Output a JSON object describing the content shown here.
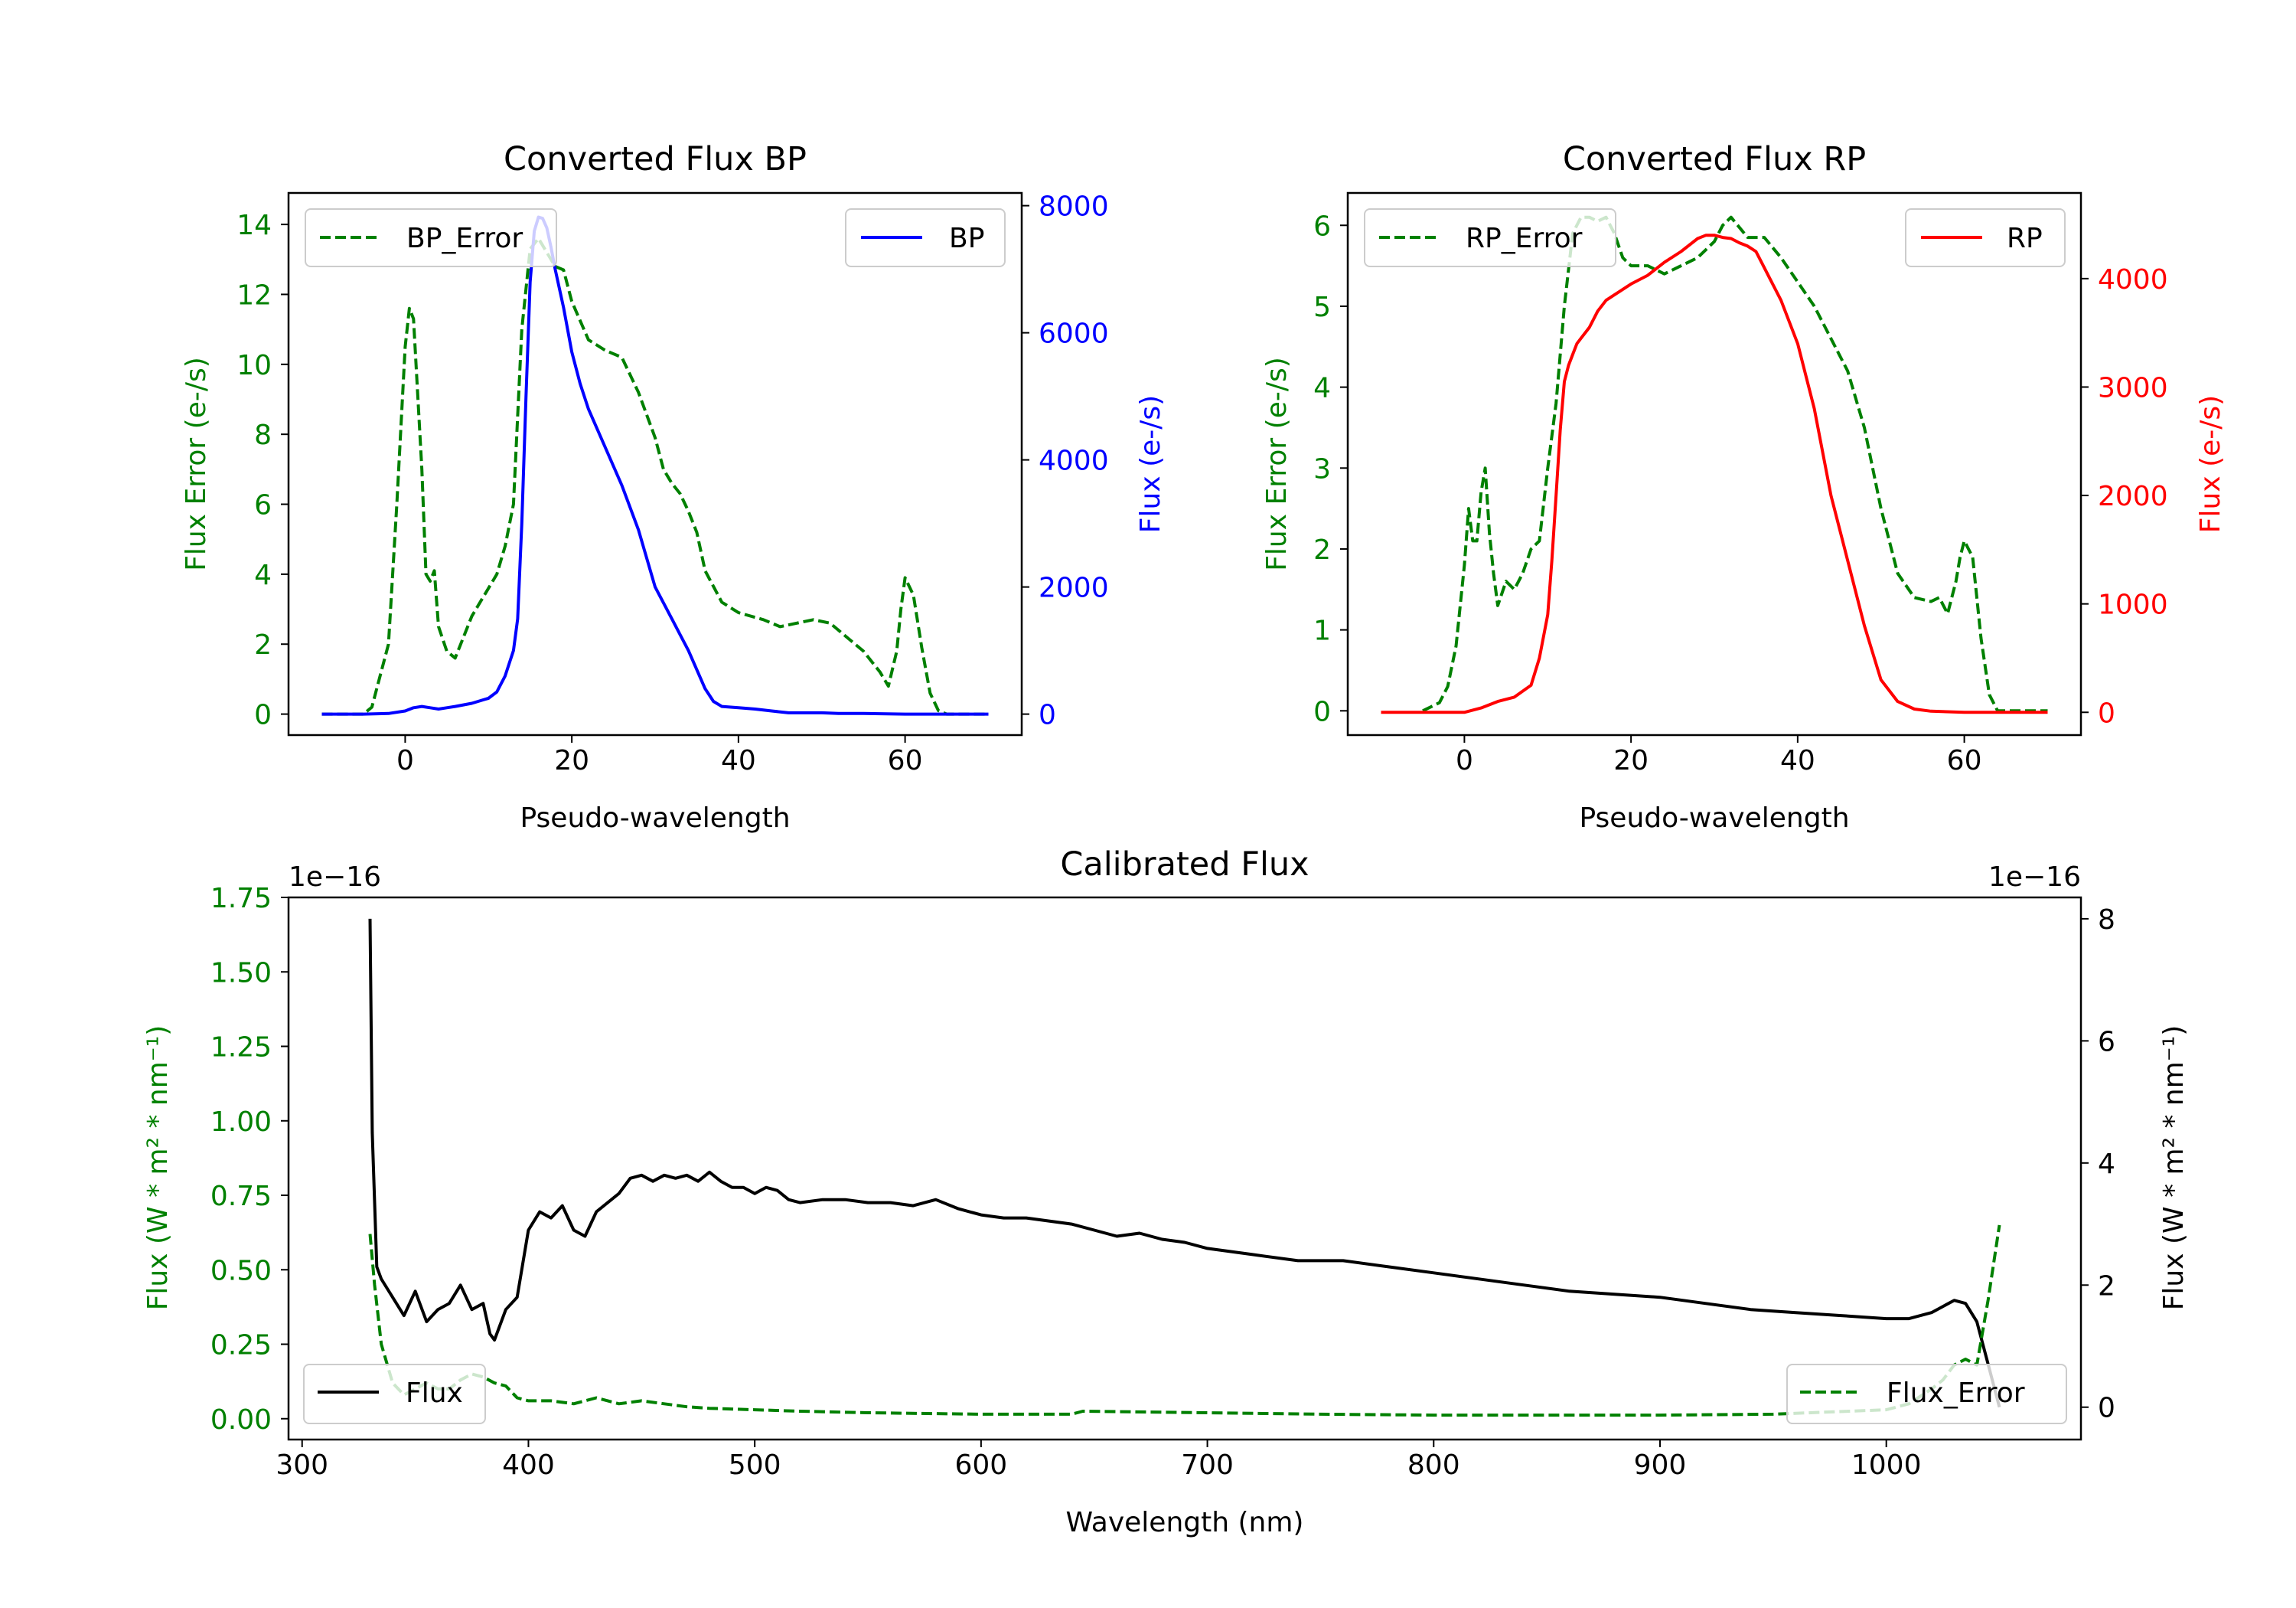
{
  "chart_data": [
    {
      "id": "bp",
      "type": "line",
      "title": "Converted Flux BP",
      "xlabel": "Pseudo-wavelength",
      "ylabel_left": "Flux Error (e-/s)",
      "ylabel_right": "Flux (e-/s)",
      "xlim": [
        -14,
        74
      ],
      "ylim_left": [
        -0.6,
        14.9
      ],
      "ylim_right": [
        -330,
        8200
      ],
      "xticks": [
        0,
        20,
        40,
        60
      ],
      "yticks_left": [
        0,
        2,
        4,
        6,
        8,
        10,
        12,
        14
      ],
      "yticks_right": [
        0,
        2000,
        4000,
        6000,
        8000
      ],
      "series": [
        {
          "name": "BP_Error",
          "axis": "left",
          "color": "#008000",
          "dashed": true,
          "legend": "top-left",
          "x": [
            -10,
            -5,
            -4,
            -2,
            -1,
            0,
            0.5,
            1,
            2,
            2.5,
            3,
            3.5,
            4,
            5,
            6,
            7,
            8,
            9,
            10,
            11,
            12,
            13,
            14,
            15,
            16,
            17,
            18,
            19,
            20,
            22,
            24,
            26,
            28,
            30,
            31,
            32,
            33,
            34,
            35,
            36,
            38,
            40,
            43,
            45,
            47,
            49,
            51,
            53,
            55,
            57,
            58,
            59,
            59.5,
            60,
            61,
            62,
            63,
            64,
            65,
            70
          ],
          "y": [
            0,
            0,
            0.2,
            2,
            6,
            10.5,
            11.6,
            11.3,
            7,
            4,
            3.8,
            4.1,
            2.5,
            1.8,
            1.6,
            2.2,
            2.8,
            3.2,
            3.6,
            4,
            4.8,
            6,
            11,
            13.3,
            13.6,
            13.2,
            12.8,
            12.7,
            11.8,
            10.7,
            10.4,
            10.2,
            9.2,
            7.9,
            7,
            6.6,
            6.3,
            5.8,
            5.2,
            4.1,
            3.2,
            2.9,
            2.7,
            2.5,
            2.6,
            2.7,
            2.6,
            2.2,
            1.8,
            1.2,
            0.8,
            1.8,
            3,
            3.9,
            3.4,
            1.9,
            0.6,
            0.1,
            0,
            0
          ]
        },
        {
          "name": "BP",
          "axis": "right",
          "color": "#0000ff",
          "dashed": false,
          "legend": "top-right",
          "x": [
            -10,
            -5,
            -2,
            0,
            1,
            2,
            3,
            4,
            5,
            6,
            8,
            10,
            11,
            12,
            13,
            13.5,
            14,
            14.5,
            15,
            15.5,
            16,
            16.5,
            17,
            17.5,
            18,
            19,
            20,
            21,
            22,
            24,
            26,
            28,
            30,
            32,
            34,
            36,
            37,
            38,
            40,
            42,
            44,
            46,
            48,
            50,
            52,
            55,
            60,
            63,
            65,
            70
          ],
          "y": [
            0,
            0,
            10,
            50,
            100,
            120,
            100,
            80,
            100,
            120,
            170,
            250,
            350,
            600,
            1000,
            1500,
            3000,
            5000,
            6800,
            7600,
            7820,
            7800,
            7650,
            7350,
            7000,
            6400,
            5700,
            5200,
            4800,
            4200,
            3600,
            2900,
            2000,
            1500,
            1000,
            400,
            200,
            120,
            100,
            80,
            50,
            20,
            20,
            20,
            10,
            10,
            0,
            0,
            0,
            0
          ]
        }
      ]
    },
    {
      "id": "rp",
      "type": "line",
      "title": "Converted Flux RP",
      "xlabel": "Pseudo-wavelength",
      "ylabel_left": "Flux Error (e-/s)",
      "ylabel_right": "Flux (e-/s)",
      "xlim": [
        -14,
        74
      ],
      "ylim_left": [
        -0.3,
        6.4
      ],
      "ylim_right": [
        -210,
        4790
      ],
      "xticks": [
        0,
        20,
        40,
        60
      ],
      "yticks_left": [
        0,
        1,
        2,
        3,
        4,
        5,
        6
      ],
      "yticks_right": [
        0,
        1000,
        2000,
        3000,
        4000
      ],
      "series": [
        {
          "name": "RP_Error",
          "axis": "left",
          "color": "#008000",
          "dashed": true,
          "legend": "top-left",
          "x": [
            -5,
            -3,
            -2,
            -1,
            0,
            0.5,
            1,
            1.5,
            2,
            2.5,
            3,
            3.5,
            4,
            5,
            6,
            7,
            8,
            9,
            10,
            11,
            12,
            13,
            14,
            15,
            16,
            17,
            18,
            19,
            20,
            22,
            24,
            26,
            28,
            30,
            31,
            32,
            34,
            36,
            38,
            40,
            42,
            44,
            46,
            48,
            50,
            52,
            54,
            56,
            57,
            58,
            59,
            59.5,
            60,
            61,
            62,
            63,
            64,
            65,
            70
          ],
          "y": [
            0,
            0.1,
            0.3,
            0.8,
            1.8,
            2.5,
            2.1,
            2.1,
            2.7,
            3,
            2.2,
            1.7,
            1.3,
            1.6,
            1.5,
            1.7,
            2,
            2.1,
            3,
            3.8,
            5,
            5.9,
            6.1,
            6.1,
            6.05,
            6.1,
            5.9,
            5.6,
            5.5,
            5.5,
            5.4,
            5.5,
            5.6,
            5.8,
            6,
            6.1,
            5.85,
            5.85,
            5.6,
            5.3,
            5,
            4.6,
            4.2,
            3.5,
            2.5,
            1.7,
            1.4,
            1.35,
            1.4,
            1.2,
            1.6,
            1.9,
            2.1,
            1.9,
            0.9,
            0.2,
            0,
            0,
            0
          ]
        },
        {
          "name": "RP",
          "axis": "right",
          "color": "#ff0000",
          "dashed": false,
          "legend": "top-right",
          "x": [
            -10,
            -5,
            0,
            2,
            4,
            6,
            8,
            9,
            10,
            10.5,
            11,
            11.5,
            12,
            12.5,
            13,
            13.5,
            14,
            15,
            16,
            17,
            18,
            20,
            22,
            24,
            26,
            28,
            29,
            30,
            31,
            32,
            33,
            34,
            35,
            36,
            38,
            40,
            42,
            44,
            46,
            48,
            50,
            52,
            54,
            56,
            60,
            65,
            70
          ],
          "y": [
            0,
            0,
            0,
            40,
            100,
            140,
            250,
            500,
            900,
            1400,
            2000,
            2600,
            3050,
            3200,
            3300,
            3400,
            3450,
            3550,
            3700,
            3800,
            3850,
            3950,
            4030,
            4150,
            4250,
            4370,
            4400,
            4400,
            4380,
            4370,
            4330,
            4300,
            4250,
            4100,
            3800,
            3400,
            2800,
            2000,
            1400,
            800,
            300,
            100,
            30,
            10,
            0,
            0,
            0
          ]
        }
      ]
    },
    {
      "id": "cal",
      "type": "line",
      "title": "Calibrated Flux",
      "xlabel": "Wavelength (nm)",
      "ylabel_left": "Flux (W * m² * nm⁻¹)",
      "ylabel_right": "Flux (W * m² * nm⁻¹)",
      "offset_left": "1e−16",
      "offset_right": "1e−16",
      "xlim": [
        294,
        1086
      ],
      "ylim_left": [
        -0.07,
        1.75
      ],
      "ylim_right": [
        -0.53,
        8.35
      ],
      "xticks": [
        300,
        400,
        500,
        600,
        700,
        800,
        900,
        1000
      ],
      "yticks_left": [
        0.0,
        0.25,
        0.5,
        0.75,
        1.0,
        1.25,
        1.5,
        1.75
      ],
      "yticks_left_labels": [
        "0.00",
        "0.25",
        "0.50",
        "0.75",
        "1.00",
        "1.25",
        "1.50",
        "1.75"
      ],
      "yticks_right": [
        0,
        2,
        4,
        6,
        8
      ],
      "series": [
        {
          "name": "Flux",
          "axis": "right",
          "color": "#000000",
          "dashed": false,
          "legend": "bottom-left",
          "x": [
            330,
            331,
            333,
            335,
            340,
            345,
            350,
            355,
            360,
            365,
            370,
            375,
            380,
            383,
            385,
            388,
            390,
            395,
            400,
            405,
            410,
            415,
            420,
            425,
            430,
            440,
            445,
            450,
            455,
            460,
            465,
            470,
            475,
            480,
            485,
            490,
            495,
            500,
            505,
            510,
            515,
            520,
            530,
            540,
            550,
            560,
            570,
            580,
            590,
            600,
            610,
            620,
            630,
            640,
            650,
            660,
            670,
            680,
            690,
            700,
            720,
            740,
            760,
            780,
            800,
            820,
            840,
            860,
            880,
            900,
            920,
            940,
            960,
            980,
            1000,
            1010,
            1020,
            1025,
            1030,
            1035,
            1040,
            1045,
            1050
          ],
          "y": [
            8,
            4.5,
            2.3,
            2.1,
            1.8,
            1.5,
            1.9,
            1.4,
            1.6,
            1.7,
            2,
            1.6,
            1.7,
            1.2,
            1.1,
            1.4,
            1.6,
            1.8,
            2.9,
            3.2,
            3.1,
            3.3,
            2.9,
            2.8,
            3.2,
            3.5,
            3.75,
            3.8,
            3.7,
            3.8,
            3.75,
            3.8,
            3.7,
            3.85,
            3.7,
            3.6,
            3.6,
            3.5,
            3.6,
            3.55,
            3.4,
            3.35,
            3.4,
            3.4,
            3.35,
            3.35,
            3.3,
            3.4,
            3.25,
            3.15,
            3.1,
            3.1,
            3.05,
            3,
            2.9,
            2.8,
            2.85,
            2.75,
            2.7,
            2.6,
            2.5,
            2.4,
            2.4,
            2.3,
            2.2,
            2.1,
            2.0,
            1.9,
            1.85,
            1.8,
            1.7,
            1.6,
            1.55,
            1.5,
            1.45,
            1.45,
            1.55,
            1.65,
            1.75,
            1.7,
            1.4,
            0.7,
            0
          ]
        },
        {
          "name": "Flux_Error",
          "axis": "left",
          "color": "#008000",
          "dashed": true,
          "legend": "bottom-right",
          "x": [
            330,
            332,
            335,
            340,
            345,
            350,
            355,
            360,
            365,
            370,
            375,
            380,
            385,
            390,
            395,
            400,
            410,
            420,
            430,
            440,
            450,
            460,
            470,
            480,
            500,
            520,
            550,
            600,
            640,
            645,
            700,
            750,
            800,
            850,
            900,
            950,
            1000,
            1010,
            1020,
            1025,
            1030,
            1035,
            1040,
            1045,
            1050
          ],
          "y": [
            0.62,
            0.45,
            0.25,
            0.12,
            0.08,
            0.1,
            0.12,
            0.1,
            0.1,
            0.13,
            0.15,
            0.14,
            0.12,
            0.11,
            0.07,
            0.06,
            0.06,
            0.05,
            0.07,
            0.05,
            0.06,
            0.05,
            0.04,
            0.035,
            0.03,
            0.025,
            0.02,
            0.015,
            0.015,
            0.025,
            0.02,
            0.015,
            0.012,
            0.012,
            0.012,
            0.015,
            0.03,
            0.05,
            0.1,
            0.13,
            0.18,
            0.2,
            0.18,
            0.4,
            0.65
          ]
        }
      ]
    }
  ]
}
